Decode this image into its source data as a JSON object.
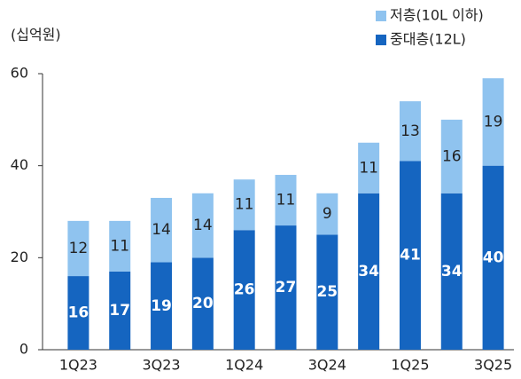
{
  "chart_data": {
    "type": "stacked_bar",
    "unit_label": "(십억원)",
    "categories": [
      "1Q23",
      null,
      "3Q23",
      null,
      "1Q24",
      null,
      "3Q24",
      null,
      "1Q25",
      null,
      "3Q25"
    ],
    "series": [
      {
        "name": "중대층(12L)",
        "color": "#1565c0",
        "values": [
          16,
          17,
          19,
          20,
          26,
          27,
          25,
          34,
          41,
          34,
          40
        ]
      },
      {
        "name": "저층(10L 이하)",
        "color": "#8fc3ef",
        "values": [
          12,
          11,
          14,
          14,
          11,
          11,
          9,
          11,
          13,
          16,
          19
        ]
      }
    ],
    "ylim": [
      0,
      60
    ],
    "yticks": [
      0,
      20,
      40,
      60
    ],
    "grid": false,
    "legend": "top-right"
  }
}
